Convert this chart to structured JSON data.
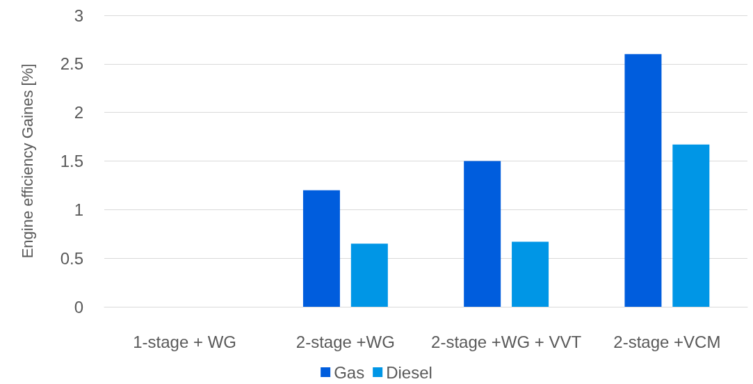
{
  "chart_data": {
    "type": "bar",
    "ylabel": "Engine efficiency Gaines [%]",
    "categories": [
      "1-stage + WG",
      "2-stage +WG",
      "2-stage +WG + VVT",
      "2-stage +VCM"
    ],
    "series": [
      {
        "name": "Gas",
        "color": "#005ddd",
        "values": [
          0,
          1.2,
          1.5,
          2.6
        ]
      },
      {
        "name": "Diesel",
        "color": "#0096e6",
        "values": [
          0,
          0.65,
          0.67,
          1.67
        ]
      }
    ],
    "ylim": [
      0,
      3
    ],
    "yticks": [
      0,
      0.5,
      1,
      1.5,
      2,
      2.5,
      3
    ],
    "grid": "y",
    "legend": "bottom"
  }
}
